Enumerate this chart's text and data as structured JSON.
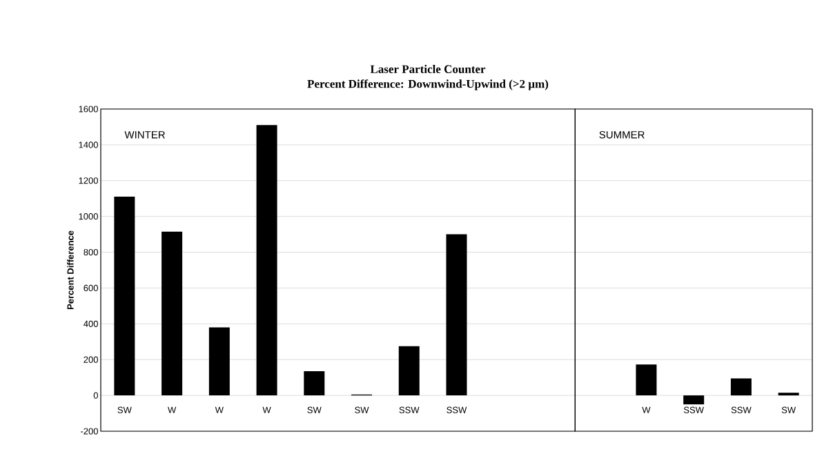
{
  "chart_data": [
    {
      "type": "bar",
      "title": "Laser Particle Counter",
      "subtitle": "Percent Difference: Downwind-Upwind (>2 µm)",
      "ylabel": "Percent Difference",
      "categories": [
        "SW",
        "W",
        "W",
        "W",
        "SW",
        "SW",
        "SSW",
        "SSW",
        null,
        null
      ],
      "values": [
        1110,
        915,
        380,
        1510,
        135,
        5,
        275,
        900,
        null,
        null
      ],
      "color": "#000000",
      "ylim": [
        -200,
        1600
      ],
      "yticks": [
        -200,
        0,
        200,
        400,
        600,
        800,
        1000,
        1200,
        1400,
        1600
      ],
      "grid": "y",
      "annotations": [
        "WINTER"
      ]
    },
    {
      "type": "bar",
      "categories": [
        null,
        "W",
        "SSW",
        "SSW",
        "SW"
      ],
      "values": [
        null,
        173,
        -50,
        95,
        15
      ],
      "color": "#000000",
      "ylim": [
        -200,
        1600
      ],
      "yticks": [
        -200,
        0,
        200,
        400,
        600,
        800,
        1000,
        1200,
        1400,
        1600
      ],
      "grid": "y",
      "tick_labels": "x",
      "annotations": [
        "SUMMER"
      ]
    }
  ]
}
